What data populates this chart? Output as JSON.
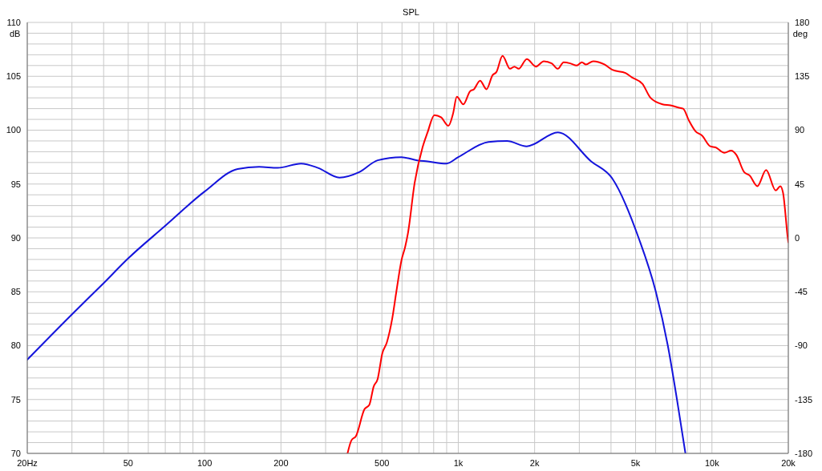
{
  "chart_data": {
    "type": "line",
    "title": "SPL",
    "ylabel": "dB",
    "y2label": "deg",
    "xlim": [
      20,
      20000
    ],
    "log": "x",
    "grid": true,
    "legend": false,
    "marker": "none",
    "line_style": "solid",
    "xticks": [
      {
        "value": 20,
        "label": "20Hz"
      },
      {
        "value": 30,
        "label": null
      },
      {
        "value": 40,
        "label": null
      },
      50,
      {
        "value": 60,
        "label": null
      },
      {
        "value": 70,
        "label": null
      },
      {
        "value": 80,
        "label": null
      },
      {
        "value": 90,
        "label": null
      },
      100,
      200,
      {
        "value": 300,
        "label": null
      },
      {
        "value": 400,
        "label": null
      },
      500,
      {
        "value": 600,
        "label": null
      },
      {
        "value": 700,
        "label": null
      },
      {
        "value": 800,
        "label": null
      },
      {
        "value": 900,
        "label": null
      },
      {
        "value": 1000,
        "label": "1k"
      },
      {
        "value": 2000,
        "label": "2k"
      },
      {
        "value": 3000,
        "label": null
      },
      {
        "value": 4000,
        "label": null
      },
      {
        "value": 5000,
        "label": "5k"
      },
      {
        "value": 6000,
        "label": null
      },
      {
        "value": 7000,
        "label": null
      },
      {
        "value": 8000,
        "label": null
      },
      {
        "value": 9000,
        "label": null
      },
      {
        "value": 10000,
        "label": "10k"
      },
      {
        "value": 20000,
        "label": "20k"
      }
    ],
    "ylim": [
      70,
      110
    ],
    "yticks": [
      70,
      {
        "value": 71,
        "label": null
      },
      {
        "value": 72,
        "label": null
      },
      {
        "value": 73,
        "label": null
      },
      {
        "value": 74,
        "label": null
      },
      75,
      {
        "value": 76,
        "label": null
      },
      {
        "value": 77,
        "label": null
      },
      {
        "value": 78,
        "label": null
      },
      {
        "value": 79,
        "label": null
      },
      80,
      {
        "value": 81,
        "label": null
      },
      {
        "value": 82,
        "label": null
      },
      {
        "value": 83,
        "label": null
      },
      {
        "value": 84,
        "label": null
      },
      85,
      {
        "value": 86,
        "label": null
      },
      {
        "value": 87,
        "label": null
      },
      {
        "value": 88,
        "label": null
      },
      {
        "value": 89,
        "label": null
      },
      90,
      {
        "value": 91,
        "label": null
      },
      {
        "value": 92,
        "label": null
      },
      {
        "value": 93,
        "label": null
      },
      {
        "value": 94,
        "label": null
      },
      95,
      {
        "value": 96,
        "label": null
      },
      {
        "value": 97,
        "label": null
      },
      {
        "value": 98,
        "label": null
      },
      {
        "value": 99,
        "label": null
      },
      100,
      {
        "value": 101,
        "label": null
      },
      {
        "value": 102,
        "label": null
      },
      {
        "value": 103,
        "label": null
      },
      {
        "value": 104,
        "label": null
      },
      105,
      {
        "value": 106,
        "label": null
      },
      {
        "value": 107,
        "label": null
      },
      {
        "value": 108,
        "label": null
      },
      {
        "value": 109,
        "label": null
      },
      110
    ],
    "y2lim": [
      -180,
      180
    ],
    "y2ticks": [
      -180,
      -135,
      -90,
      -45,
      0,
      45,
      90,
      135,
      180
    ],
    "series": [
      {
        "color": "#1414dc",
        "x": [
          20,
          30,
          40,
          50,
          69,
          100,
          135,
          164,
          194,
          240,
          280,
          340,
          407,
          481,
          597,
          689,
          757,
          897,
          1000,
          1315,
          1556,
          1862,
          2470,
          3340,
          4050,
          5140,
          6010,
          6700,
          7280,
          7860
        ],
        "values": [
          78.7,
          82.9,
          85.8,
          88.1,
          91.0,
          94.3,
          96.4,
          96.6,
          96.5,
          96.9,
          96.5,
          95.6,
          96.1,
          97.2,
          97.5,
          97.2,
          97.1,
          96.9,
          97.5,
          98.9,
          99.0,
          98.5,
          99.8,
          97.1,
          95.5,
          90.0,
          85.0,
          80.0,
          75.0,
          70.0
        ]
      },
      {
        "color": "#ff0000",
        "x": [
          366,
          379,
          395,
          427,
          446,
          464,
          481,
          502,
          523,
          549,
          570,
          597,
          618,
          633,
          673,
          723,
          757,
          805,
          855,
          914,
          953,
          987,
          1047,
          1112,
          1153,
          1219,
          1292,
          1365,
          1414,
          1494,
          1600,
          1664,
          1731,
          1863,
          2024,
          2174,
          2335,
          2470,
          2602,
          2763,
          2932,
          3072,
          3185,
          3405,
          3766,
          4050,
          4561,
          4838,
          5320,
          5727,
          6380,
          6860,
          7370,
          7700,
          8110,
          8610,
          9140,
          9850,
          10340,
          11200,
          11900,
          12480,
          13400,
          14070,
          15100,
          16350,
          17840,
          18600,
          19060,
          19900,
          20000
        ],
        "values": [
          70.0,
          71.2,
          71.6,
          74.1,
          74.5,
          76.2,
          76.9,
          79.3,
          80.3,
          82.5,
          85.0,
          87.9,
          89.2,
          90.4,
          95.1,
          98.4,
          99.8,
          101.4,
          101.2,
          100.4,
          101.5,
          103.1,
          102.4,
          103.6,
          103.8,
          104.6,
          103.8,
          105.1,
          105.4,
          106.9,
          105.7,
          105.9,
          105.7,
          106.6,
          105.9,
          106.4,
          106.2,
          105.7,
          106.3,
          106.2,
          106.0,
          106.3,
          106.1,
          106.4,
          106.1,
          105.6,
          105.3,
          104.9,
          104.3,
          103.0,
          102.4,
          102.3,
          102.1,
          102.0,
          100.9,
          99.9,
          99.5,
          98.5,
          98.4,
          97.9,
          98.1,
          97.7,
          96.1,
          95.8,
          94.8,
          96.3,
          94.4,
          94.8,
          94.2,
          90.0,
          89.6
        ]
      }
    ]
  }
}
